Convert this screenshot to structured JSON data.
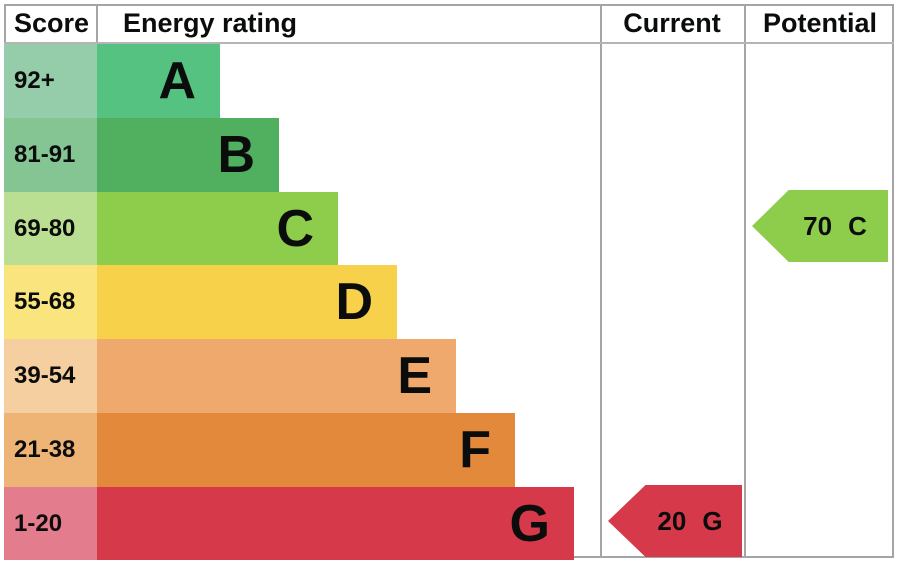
{
  "header": {
    "score": "Score",
    "energy_rating": "Energy rating",
    "current": "Current",
    "potential": "Potential"
  },
  "bands": [
    {
      "score_range": "92+",
      "letter": "A",
      "bar_color": "#55c282",
      "score_color": "#95cdaa"
    },
    {
      "score_range": "81-91",
      "letter": "B",
      "bar_color": "#50b05f",
      "score_color": "#85c493"
    },
    {
      "score_range": "69-80",
      "letter": "C",
      "bar_color": "#8ecc4c",
      "score_color": "#bbdf92"
    },
    {
      "score_range": "55-68",
      "letter": "D",
      "bar_color": "#f8d14b",
      "score_color": "#fae47e"
    },
    {
      "score_range": "39-54",
      "letter": "E",
      "bar_color": "#efa96c",
      "score_color": "#f5cfa0"
    },
    {
      "score_range": "21-38",
      "letter": "F",
      "bar_color": "#e2893c",
      "score_color": "#edb476"
    },
    {
      "score_range": "1-20",
      "letter": "G",
      "bar_color": "#d6394a",
      "score_color": "#e37d8d"
    }
  ],
  "current": {
    "value": "20",
    "letter": "G",
    "color": "#d6394a"
  },
  "potential": {
    "value": "70",
    "letter": "C",
    "color": "#8ecc4c"
  },
  "chart_data": {
    "type": "bar",
    "title": "Energy rating",
    "columns": [
      "Score",
      "Energy rating",
      "Current",
      "Potential"
    ],
    "categories": [
      "A",
      "B",
      "C",
      "D",
      "E",
      "F",
      "G"
    ],
    "score_ranges": [
      "92+",
      "81-91",
      "69-80",
      "55-68",
      "39-54",
      "21-38",
      "1-20"
    ],
    "band_colors": [
      "#55c282",
      "#50b05f",
      "#8ecc4c",
      "#f8d14b",
      "#efa96c",
      "#e2893c",
      "#d6394a"
    ],
    "bar_lengths_relative": [
      1,
      2,
      3,
      4,
      5,
      6,
      7
    ],
    "current": {
      "score": 20,
      "band": "G"
    },
    "potential": {
      "score": 70,
      "band": "C"
    }
  }
}
